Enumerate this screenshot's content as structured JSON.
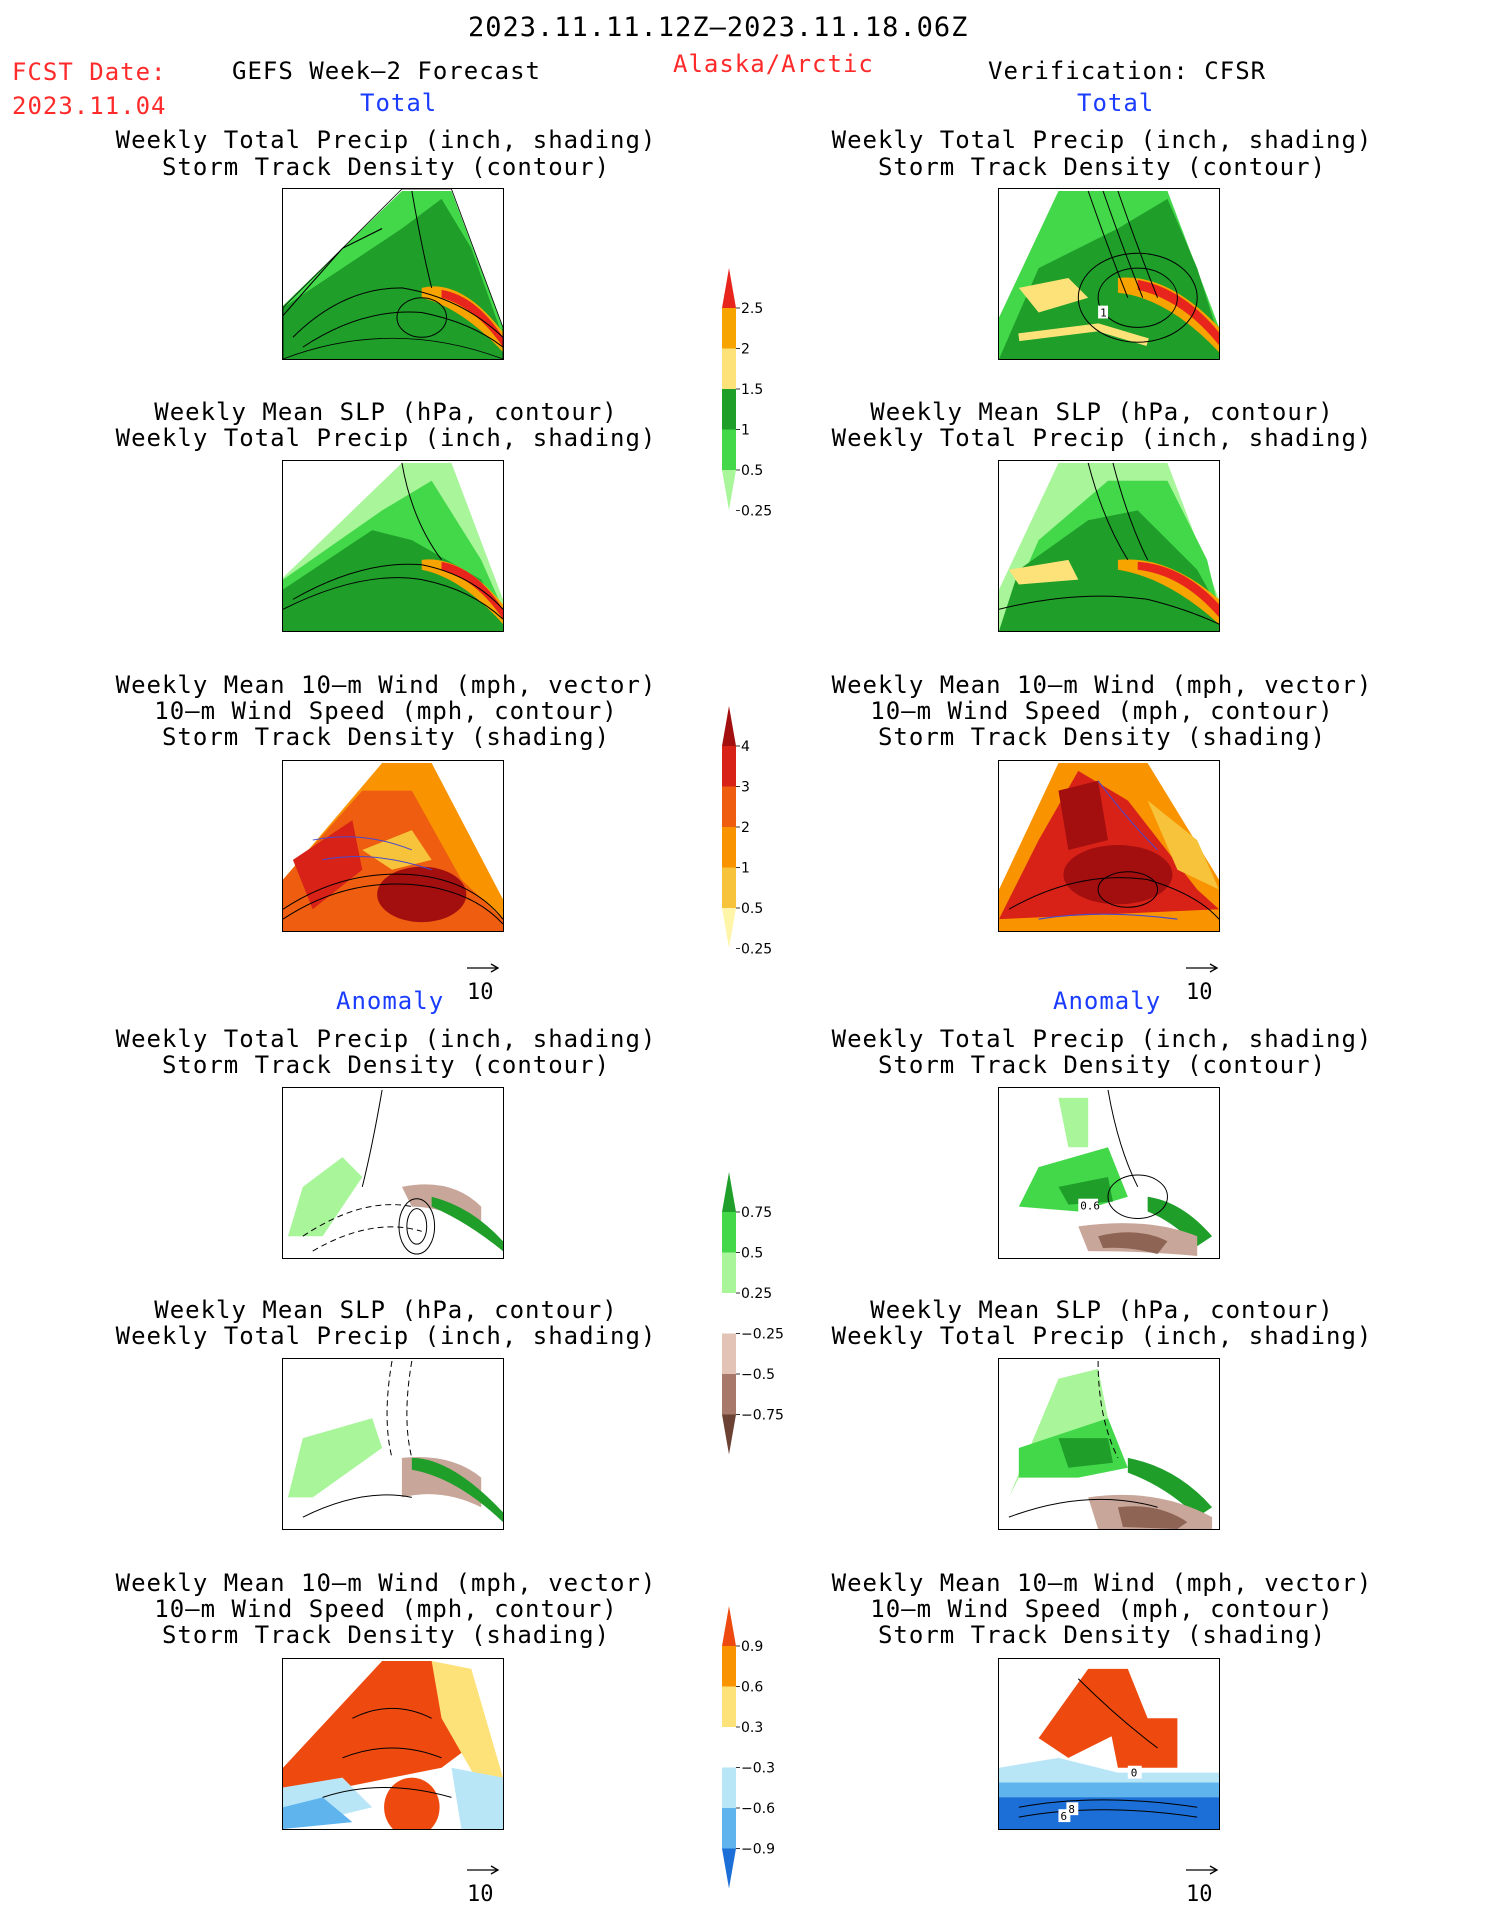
{
  "header": {
    "date_range": "2023.11.11.12Z–2023.11.18.06Z",
    "fcst_label": "FCST Date:",
    "fcst_date": "2023.11.04",
    "forecast_title": "GEFS Week–2 Forecast",
    "region": "Alaska/Arctic",
    "verification": "Verification: CFSR"
  },
  "sections": {
    "total": "Total",
    "anomaly": "Anomaly"
  },
  "captions": {
    "precip_track": [
      "Weekly Total Precip (inch, shading)",
      "Storm Track Density (contour)"
    ],
    "slp_precip": [
      "Weekly Mean SLP (hPa, contour)",
      "Weekly Total Precip (inch, shading)"
    ],
    "wind_track": [
      "Weekly Mean 10–m Wind (mph, vector)",
      "10–m Wind Speed (mph, contour)",
      "Storm Track Density (shading)"
    ]
  },
  "vector_reference": "10",
  "contour_labels": {
    "c1": "1",
    "c2": "0.6",
    "c3": "0",
    "c4": "6",
    "c5": "8"
  },
  "colorbars": {
    "precip_total": {
      "labels": [
        "2.5",
        "2",
        "1.5",
        "1",
        "0.5",
        "0.25"
      ],
      "colors": [
        "#e8251d",
        "#f7a300",
        "#fde27a",
        "#1f9e2a",
        "#43d84a",
        "#a8f59a"
      ]
    },
    "track_total": {
      "labels": [
        "4",
        "3",
        "2",
        "1",
        "0.5",
        "0.25"
      ],
      "colors": [
        "#a30f0f",
        "#d82218",
        "#ee5d10",
        "#f99400",
        "#f6c33a",
        "#fff5a8"
      ]
    },
    "precip_anom": {
      "labels": [
        "0.75",
        "0.5",
        "0.25",
        "−0.25",
        "−0.5",
        "−0.75"
      ],
      "colors": [
        "#1f9e2a",
        "#43d84a",
        "#a8f59a",
        "#ffffff",
        "#e2c3b6",
        "#a8796a",
        "#6b4233"
      ]
    },
    "track_anom": {
      "labels": [
        "0.9",
        "0.6",
        "0.3",
        "−0.3",
        "−0.6",
        "−0.9"
      ],
      "colors": [
        "#ee4a10",
        "#f99400",
        "#fde27a",
        "#ffffff",
        "#b9e6f7",
        "#5fb4ee",
        "#1b6fd6"
      ]
    }
  }
}
